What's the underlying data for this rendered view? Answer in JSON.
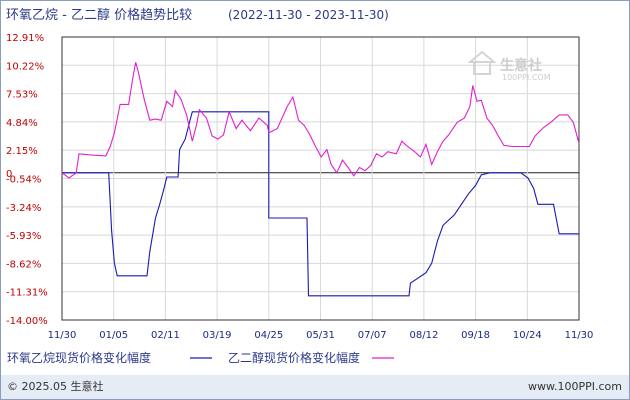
{
  "title": {
    "main": "环氧乙烷 - 乙二醇 价格趋势比较",
    "range": "(2022-11-30 - 2023-11-30)"
  },
  "footer": {
    "left": "© 2025.05 生意社",
    "right": "www.100PPI.com"
  },
  "watermark": {
    "name": "生意社",
    "url": "100PPI.COM"
  },
  "colors": {
    "series1": "#1a1ab0",
    "series2": "#e020d0",
    "axis_text_y": "#c00000",
    "axis_text_x": "#1a2a80",
    "grid": "#d8d8d8"
  },
  "chart_data": {
    "type": "line",
    "title": "环氧乙烷 - 乙二醇 价格趋势比较",
    "subtitle": "(2022-11-30 - 2023-11-30)",
    "xlabel": "",
    "ylabel": "",
    "ylim": [
      -14.0,
      12.91
    ],
    "yticks": [
      "12.91%",
      "10.22%",
      "7.53%",
      "4.84%",
      "2.15%",
      "-0.54%",
      "-3.24%",
      "-5.93%",
      "-8.62%",
      "-11.31%",
      "-14.00%"
    ],
    "ytick_values": [
      12.91,
      10.22,
      7.53,
      4.84,
      2.15,
      -0.54,
      -3.24,
      -5.93,
      -8.62,
      -11.31,
      -14.0
    ],
    "xticks": [
      "11/30",
      "01/05",
      "02/11",
      "03/19",
      "04/25",
      "05/31",
      "07/07",
      "08/12",
      "09/18",
      "10/24",
      "11/30"
    ],
    "x_domain_days": [
      0,
      365
    ],
    "zero_label": "0",
    "grid": true,
    "legend_position": "bottom",
    "series": [
      {
        "name": "环氧乙烷现货价格变化幅度",
        "points": [
          [
            "11/30",
            0.0
          ],
          [
            "01/02",
            0.0
          ],
          [
            "01/04",
            -5.5
          ],
          [
            "01/06",
            -8.6
          ],
          [
            "01/08",
            -9.8
          ],
          [
            "01/20",
            -9.8
          ],
          [
            "01/29",
            -9.8
          ],
          [
            "01/31",
            -7.5
          ],
          [
            "02/04",
            -4.3
          ],
          [
            "02/07",
            -3.0
          ],
          [
            "02/10",
            -1.5
          ],
          [
            "02/12",
            -0.4
          ],
          [
            "02/20",
            -0.4
          ],
          [
            "02/21",
            2.2
          ],
          [
            "02/25",
            3.2
          ],
          [
            "02/28",
            4.8
          ],
          [
            "03/02",
            5.8
          ],
          [
            "03/30",
            5.8
          ],
          [
            "04/25",
            5.8
          ],
          [
            "04/25",
            -4.3
          ],
          [
            "05/22",
            -4.3
          ],
          [
            "05/23",
            -11.7
          ],
          [
            "08/02",
            -11.7
          ],
          [
            "08/03",
            -10.5
          ],
          [
            "08/14",
            -9.5
          ],
          [
            "08/18",
            -8.6
          ],
          [
            "08/22",
            -6.5
          ],
          [
            "08/26",
            -5.0
          ],
          [
            "09/03",
            -4.0
          ],
          [
            "09/08",
            -3.0
          ],
          [
            "09/13",
            -2.0
          ],
          [
            "09/18",
            -1.2
          ],
          [
            "09/22",
            -0.2
          ],
          [
            "09/28",
            0.0
          ],
          [
            "10/20",
            0.0
          ],
          [
            "10/25",
            -0.5
          ],
          [
            "10/29",
            -1.5
          ],
          [
            "11/01",
            -3.0
          ],
          [
            "11/12",
            -3.0
          ],
          [
            "11/16",
            -5.8
          ],
          [
            "11/30",
            -5.8
          ]
        ]
      },
      {
        "name": "乙二醇现货价格变化幅度",
        "points": [
          [
            "11/30",
            0.0
          ],
          [
            "12/05",
            -0.5
          ],
          [
            "12/10",
            0.0
          ],
          [
            "12/12",
            1.8
          ],
          [
            "12/20",
            1.7
          ],
          [
            "12/31",
            1.6
          ],
          [
            "01/03",
            2.5
          ],
          [
            "01/06",
            3.8
          ],
          [
            "01/10",
            6.5
          ],
          [
            "01/16",
            6.5
          ],
          [
            "01/19",
            9.0
          ],
          [
            "01/21",
            10.5
          ],
          [
            "01/23",
            9.5
          ],
          [
            "01/27",
            7.0
          ],
          [
            "01/31",
            5.0
          ],
          [
            "02/04",
            5.1
          ],
          [
            "02/08",
            5.0
          ],
          [
            "02/12",
            6.8
          ],
          [
            "02/16",
            6.3
          ],
          [
            "02/18",
            7.8
          ],
          [
            "02/22",
            7.0
          ],
          [
            "02/26",
            5.5
          ],
          [
            "03/02",
            3.0
          ],
          [
            "03/05",
            4.6
          ],
          [
            "03/07",
            6.0
          ],
          [
            "03/12",
            5.2
          ],
          [
            "03/16",
            3.5
          ],
          [
            "03/20",
            3.2
          ],
          [
            "03/24",
            3.6
          ],
          [
            "03/28",
            5.8
          ],
          [
            "04/02",
            4.2
          ],
          [
            "04/06",
            5.0
          ],
          [
            "04/12",
            4.0
          ],
          [
            "04/18",
            5.2
          ],
          [
            "04/24",
            4.5
          ],
          [
            "04/25",
            3.8
          ],
          [
            "05/01",
            4.2
          ],
          [
            "05/08",
            6.3
          ],
          [
            "05/12",
            7.2
          ],
          [
            "05/16",
            5.0
          ],
          [
            "05/20",
            4.5
          ],
          [
            "05/24",
            3.6
          ],
          [
            "05/28",
            2.5
          ],
          [
            "06/01",
            1.5
          ],
          [
            "06/05",
            2.2
          ],
          [
            "06/08",
            0.8
          ],
          [
            "06/12",
            0.0
          ],
          [
            "06/16",
            1.2
          ],
          [
            "06/20",
            0.5
          ],
          [
            "06/24",
            -0.3
          ],
          [
            "06/28",
            0.5
          ],
          [
            "07/02",
            0.2
          ],
          [
            "07/06",
            0.7
          ],
          [
            "07/10",
            1.8
          ],
          [
            "07/14",
            1.5
          ],
          [
            "07/18",
            2.0
          ],
          [
            "07/24",
            1.8
          ],
          [
            "07/28",
            3.0
          ],
          [
            "08/01",
            2.5
          ],
          [
            "08/06",
            2.0
          ],
          [
            "08/10",
            1.5
          ],
          [
            "08/14",
            2.7
          ],
          [
            "08/18",
            0.8
          ],
          [
            "08/22",
            2.0
          ],
          [
            "08/26",
            3.0
          ],
          [
            "08/30",
            3.6
          ],
          [
            "09/05",
            4.8
          ],
          [
            "09/10",
            5.2
          ],
          [
            "09/14",
            6.3
          ],
          [
            "09/16",
            8.3
          ],
          [
            "09/19",
            6.8
          ],
          [
            "09/22",
            6.9
          ],
          [
            "09/26",
            5.2
          ],
          [
            "09/30",
            4.5
          ],
          [
            "10/04",
            3.5
          ],
          [
            "10/08",
            2.6
          ],
          [
            "10/14",
            2.5
          ],
          [
            "10/20",
            2.5
          ],
          [
            "10/26",
            2.5
          ],
          [
            "10/30",
            3.5
          ],
          [
            "11/05",
            4.3
          ],
          [
            "11/10",
            4.8
          ],
          [
            "11/16",
            5.5
          ],
          [
            "11/22",
            5.5
          ],
          [
            "11/26",
            4.8
          ],
          [
            "11/30",
            2.8
          ]
        ]
      }
    ]
  }
}
